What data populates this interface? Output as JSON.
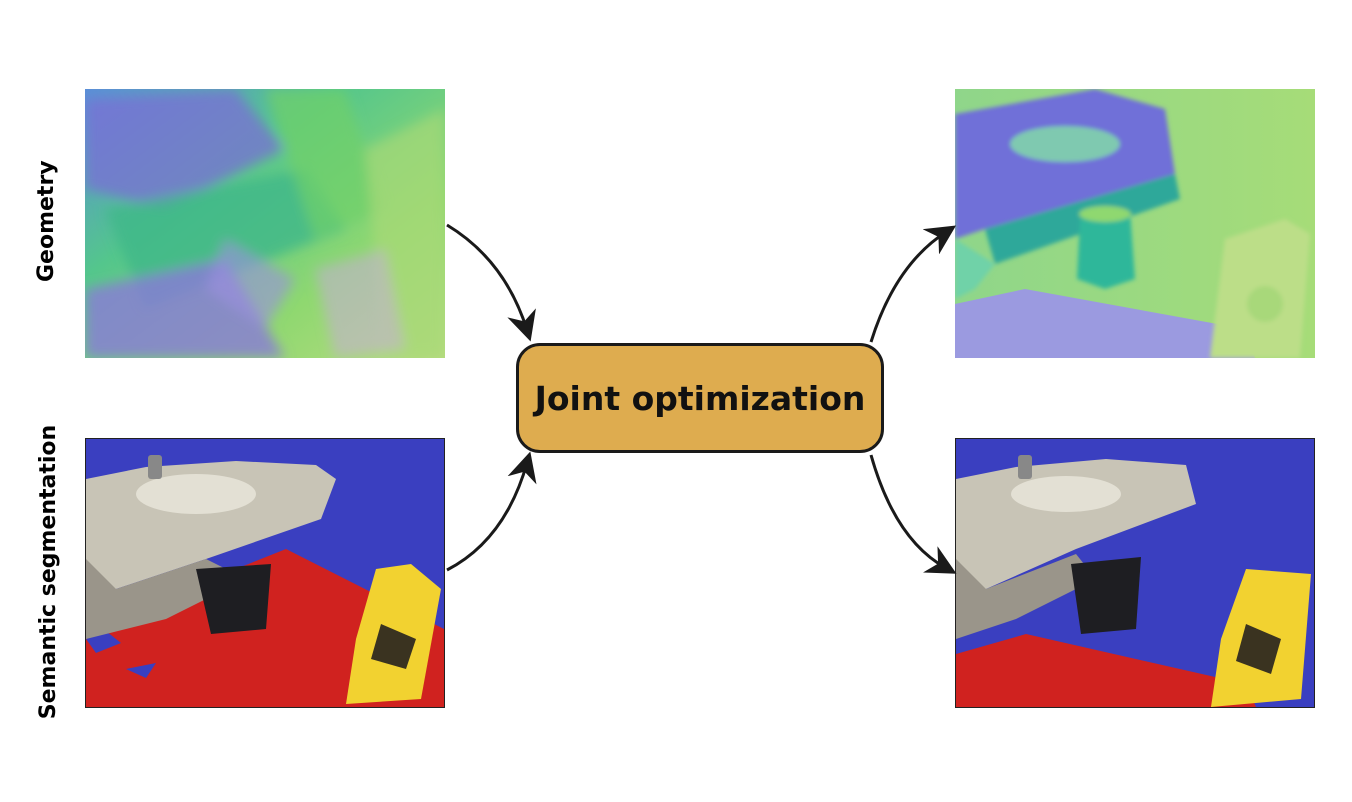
{
  "labels": {
    "geometry": "Geometry",
    "semantic": "Semantic segmentation"
  },
  "center_box": {
    "label": "Joint optimization",
    "fill_color": "#deac4f"
  },
  "panels": [
    {
      "role": "input",
      "content": "geometry-normals-noisy"
    },
    {
      "role": "input",
      "content": "semantic-segmentation-noisy"
    },
    {
      "role": "output",
      "content": "geometry-normals-refined"
    },
    {
      "role": "output",
      "content": "semantic-segmentation-refined"
    }
  ],
  "colors": {
    "wall_class": "#3a3fc0",
    "floor_class": "#d0221f",
    "caution_sign": "#f2d230",
    "arrow": "#1a1a1a"
  }
}
